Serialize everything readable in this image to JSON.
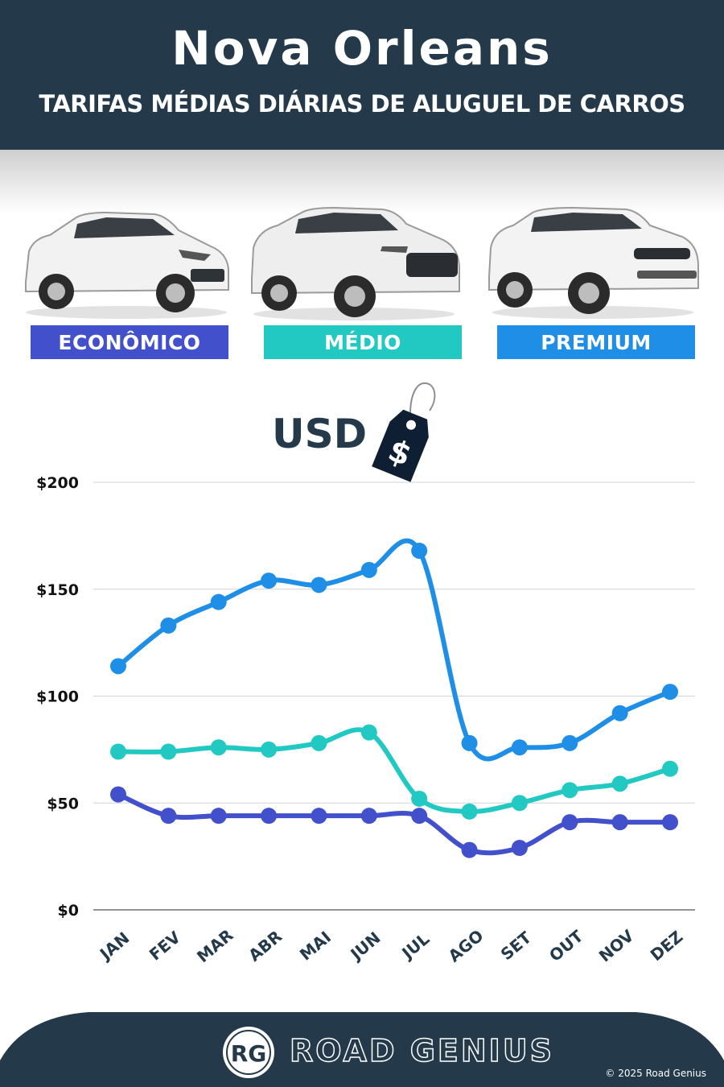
{
  "header": {
    "title": "Nova Orleans",
    "subtitle": "TARIFAS MÉDIAS DIÁRIAS DE ALUGUEL DE CARROS"
  },
  "categories": [
    {
      "label": "ECONÔMICO",
      "color": "#4350cc"
    },
    {
      "label": "MÉDIO",
      "color": "#22c9c2"
    },
    {
      "label": "PREMIUM",
      "color": "#1f8ee6"
    }
  ],
  "currency_label": "USD",
  "tag_symbol": "$",
  "chart_data": {
    "type": "line",
    "categories": [
      "JAN",
      "FEV",
      "MAR",
      "ABR",
      "MAI",
      "JUN",
      "JUL",
      "AGO",
      "SET",
      "OUT",
      "NOV",
      "DEZ"
    ],
    "series": [
      {
        "name": "ECONÔMICO",
        "color": "#4350cc",
        "values": [
          54,
          44,
          44,
          44,
          44,
          44,
          44,
          28,
          29,
          41,
          41,
          41
        ]
      },
      {
        "name": "MÉDIO",
        "color": "#22c9c2",
        "values": [
          74,
          74,
          76,
          75,
          78,
          83,
          52,
          46,
          50,
          56,
          59,
          66
        ]
      },
      {
        "name": "PREMIUM",
        "color": "#1f8ee6",
        "values": [
          114,
          133,
          144,
          154,
          152,
          159,
          168,
          78,
          76,
          78,
          92,
          102
        ]
      }
    ],
    "yticks": [
      "$0",
      "$50",
      "$100",
      "$150",
      "$200"
    ],
    "ytick_values": [
      0,
      50,
      100,
      150,
      200
    ],
    "ylim": [
      0,
      200
    ],
    "grid": true
  },
  "footer": {
    "logo_text": "RG",
    "brand": "ROAD GENIUS",
    "copyright": "© 2025 Road Genius",
    "bg_color": "#243a4b"
  }
}
